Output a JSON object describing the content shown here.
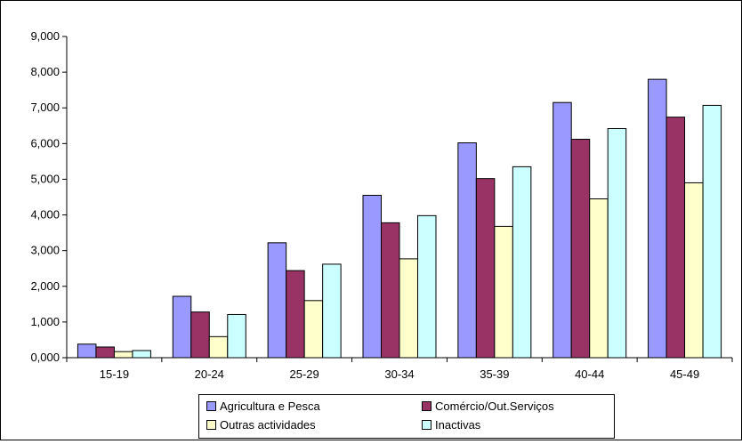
{
  "chart_data": {
    "type": "bar",
    "title": "",
    "xlabel": "",
    "ylabel": "",
    "ylim": [
      0,
      9000
    ],
    "ytick_step": 1000,
    "ytick_labels": [
      "0,000",
      "1,000",
      "2,000",
      "3,000",
      "4,000",
      "5,000",
      "6,000",
      "7,000",
      "8,000",
      "9,000"
    ],
    "grid": false,
    "legend_position": "bottom",
    "categories": [
      "15-19",
      "20-24",
      "25-29",
      "30-34",
      "35-39",
      "40-44",
      "45-49"
    ],
    "series": [
      {
        "name": "Agricultura e Pesca",
        "color": "#9999ff",
        "values": [
          380,
          1720,
          3220,
          4550,
          6020,
          7150,
          7800
        ]
      },
      {
        "name": "Comércio/Out.Serviços",
        "color": "#993366",
        "values": [
          300,
          1280,
          2440,
          3780,
          5020,
          6120,
          6740
        ]
      },
      {
        "name": "Outras actividades",
        "color": "#ffffcc",
        "values": [
          170,
          590,
          1600,
          2770,
          3680,
          4450,
          4900
        ]
      },
      {
        "name": "Inactivas",
        "color": "#ccffff",
        "values": [
          200,
          1210,
          2620,
          3980,
          5350,
          6420,
          7070
        ]
      }
    ]
  }
}
